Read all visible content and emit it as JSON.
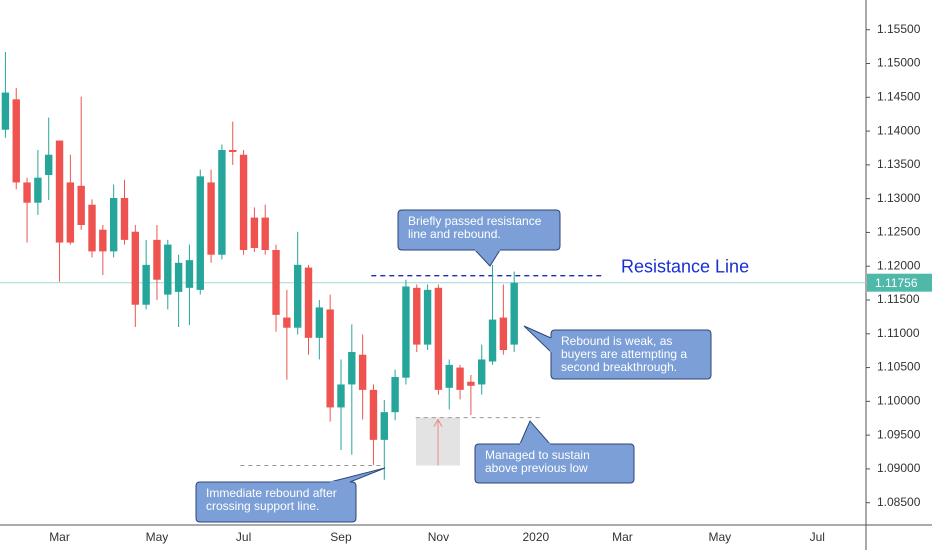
{
  "chart_data": {
    "type": "candlestick",
    "categories": [
      null,
      null,
      null,
      null,
      null,
      "Mar",
      null,
      null,
      null,
      null,
      null,
      null,
      null,
      null,
      "May",
      null,
      null,
      null,
      null,
      null,
      null,
      null,
      "Jul",
      null,
      null,
      null,
      null,
      null,
      null,
      null,
      null,
      "Sep",
      null,
      null,
      null,
      null,
      null,
      null,
      null,
      null,
      "Nov",
      null,
      null,
      null,
      null,
      null,
      null,
      null,
      null,
      "2020",
      null,
      null,
      null,
      null,
      null,
      null,
      null,
      "Mar",
      null,
      null,
      null,
      null,
      null,
      null,
      null,
      null,
      "May",
      null,
      null,
      null,
      null,
      null,
      null,
      null,
      null,
      "Jul",
      null,
      null,
      null,
      null
    ],
    "open": [
      1.1402,
      1.1447,
      1.1324,
      1.1294,
      1.1335,
      1.1386,
      1.1324,
      1.1319,
      1.1291,
      1.1254,
      1.1222,
      1.1301,
      1.1251,
      1.1143,
      1.1239,
      1.1158,
      1.1162,
      1.1168,
      1.1165,
      1.1324,
      1.1217,
      1.1372,
      1.1365,
      1.1272,
      1.1272,
      1.1224,
      1.1124,
      1.1109,
      1.1198,
      1.1094,
      1.1136,
      1.0991,
      1.1025,
      1.1069,
      1.1017,
      1.0943,
      1.0984,
      1.1035,
      1.1168,
      1.1084,
      1.1168,
      1.102,
      1.105,
      1.1029,
      1.1025,
      1.1059,
      1.1124,
      1.1084,
      null,
      null,
      null,
      null,
      null,
      null,
      null,
      null,
      null,
      null,
      null,
      null,
      null,
      null,
      null,
      null,
      null,
      null,
      null,
      null,
      null,
      null,
      null,
      null,
      null,
      null,
      null,
      null,
      null,
      null,
      null,
      null
    ],
    "high": [
      1.1517,
      1.1464,
      1.1331,
      1.1372,
      1.142,
      1.1386,
      1.1365,
      1.1451,
      1.1299,
      1.1261,
      1.1321,
      1.1328,
      1.1261,
      1.1239,
      1.1261,
      1.1239,
      1.1217,
      1.1232,
      1.1343,
      1.1343,
      1.138,
      1.1414,
      1.1372,
      1.1287,
      1.1291,
      1.1232,
      1.1165,
      1.1251,
      1.1202,
      1.115,
      1.1158,
      1.1062,
      1.1114,
      1.1099,
      1.1025,
      1.1002,
      1.1047,
      1.118,
      1.1173,
      1.1173,
      1.1173,
      1.1062,
      1.1054,
      1.1039,
      1.1084,
      1.1202,
      1.1173,
      1.1192,
      null,
      null,
      null,
      null,
      null,
      null,
      null,
      null,
      null,
      null,
      null,
      null,
      null,
      null,
      null,
      null,
      null,
      null,
      null,
      null,
      null,
      null,
      null,
      null,
      null,
      null,
      null,
      null,
      null,
      null,
      null,
      null
    ],
    "low": [
      1.139,
      1.1314,
      1.1235,
      1.1276,
      1.1298,
      1.1177,
      1.1232,
      1.1254,
      1.1213,
      1.1187,
      1.1213,
      1.1232,
      1.111,
      1.1136,
      1.115,
      1.1136,
      1.111,
      1.1113,
      1.1158,
      1.1205,
      1.121,
      1.135,
      1.1217,
      1.1221,
      1.1217,
      1.1103,
      1.1032,
      1.1099,
      1.1069,
      1.1062,
      1.097,
      1.0928,
      1.0921,
      1.0973,
      1.0906,
      1.0884,
      1.0972,
      1.1025,
      1.1073,
      1.1076,
      1.101,
      1.0988,
      1.1003,
      1.098,
      1.101,
      1.1054,
      1.1069,
      1.1073,
      null,
      null,
      null,
      null,
      null,
      null,
      null,
      null,
      null,
      null,
      null,
      null,
      null,
      null,
      null,
      null,
      null,
      null,
      null,
      null,
      null,
      null,
      null,
      null,
      null,
      null,
      null,
      null,
      null,
      null,
      null,
      null
    ],
    "close": [
      1.1457,
      1.1324,
      1.1294,
      1.1331,
      1.1365,
      1.1235,
      1.1235,
      1.1261,
      1.1222,
      1.1222,
      1.1301,
      1.1239,
      1.1143,
      1.1202,
      1.118,
      1.1232,
      1.1205,
      1.1209,
      1.1333,
      1.1217,
      1.1372,
      1.1369,
      1.1224,
      1.1227,
      1.1224,
      1.1128,
      1.1109,
      1.1202,
      1.1094,
      1.1139,
      1.0991,
      1.1025,
      1.1073,
      1.1017,
      1.0943,
      1.0984,
      1.1036,
      1.117,
      1.1084,
      1.1165,
      1.1017,
      1.1054,
      1.1017,
      1.1023,
      1.1062,
      1.1121,
      1.1076,
      1.11756,
      null,
      null,
      null,
      null,
      null,
      null,
      null,
      null,
      null,
      null,
      null,
      null,
      null,
      null,
      null,
      null,
      null,
      null,
      null,
      null,
      null,
      null,
      null,
      null,
      null,
      null,
      null,
      null,
      null,
      null,
      null,
      null
    ],
    "up_color": "#26a69a",
    "down_color": "#ef5350",
    "ylim": [
      1.0817,
      1.1594
    ],
    "yticks": [
      {
        "value": 1.085,
        "label": "1.08500"
      },
      {
        "value": 1.09,
        "label": "1.09000"
      },
      {
        "value": 1.095,
        "label": "1.09500"
      },
      {
        "value": 1.1,
        "label": "1.10000"
      },
      {
        "value": 1.105,
        "label": "1.10500"
      },
      {
        "value": 1.11,
        "label": "1.11000"
      },
      {
        "value": 1.115,
        "label": "1.11500"
      },
      {
        "value": 1.12,
        "label": "1.12000"
      },
      {
        "value": 1.125,
        "label": "1.12500"
      },
      {
        "value": 1.13,
        "label": "1.13000"
      },
      {
        "value": 1.135,
        "label": "1.13500"
      },
      {
        "value": 1.14,
        "label": "1.14000"
      },
      {
        "value": 1.145,
        "label": "1.14500"
      },
      {
        "value": 1.15,
        "label": "1.15000"
      },
      {
        "value": 1.155,
        "label": "1.15500"
      }
    ],
    "grid": false,
    "reference_lines": [
      1.1186,
      1.0976,
      1.0905
    ],
    "resistance_label": "Resistance Line",
    "annotations": [
      {
        "lines": [
          "Briefly passed resistance",
          "line and rebound."
        ]
      },
      {
        "lines": [
          "Rebound is weak, as",
          "buyers are attempting a",
          "second breakthrough."
        ]
      },
      {
        "lines": [
          "Managed to sustain",
          "above previous low"
        ]
      },
      {
        "lines": [
          "Immediate rebound after",
          "crossing support line."
        ]
      }
    ]
  }
}
